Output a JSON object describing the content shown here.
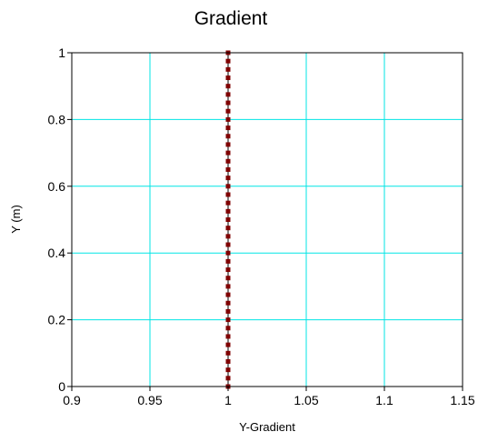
{
  "chart_data": {
    "type": "line",
    "title": "Gradient",
    "xlabel": "Y-Gradient",
    "ylabel": "Y (m)",
    "xlim": [
      0.9,
      1.15
    ],
    "ylim": [
      0,
      1
    ],
    "x_ticks": [
      "0.9",
      "0.95",
      "1",
      "1.05",
      "1.1",
      "1.15"
    ],
    "y_ticks": [
      "0",
      "0.2",
      "0.4",
      "0.6",
      "0.8",
      "1"
    ],
    "grid": true,
    "series": [
      {
        "x": [
          1,
          1,
          1,
          1,
          1,
          1,
          1,
          1,
          1,
          1,
          1,
          1,
          1,
          1,
          1,
          1,
          1,
          1,
          1,
          1,
          1,
          1,
          1,
          1,
          1,
          1,
          1,
          1,
          1,
          1,
          1,
          1,
          1,
          1,
          1,
          1,
          1,
          1,
          1,
          1,
          1
        ],
        "y": [
          0,
          0.025,
          0.05,
          0.075,
          0.1,
          0.125,
          0.15,
          0.175,
          0.2,
          0.225,
          0.25,
          0.275,
          0.3,
          0.325,
          0.35,
          0.375,
          0.4,
          0.425,
          0.45,
          0.475,
          0.5,
          0.525,
          0.55,
          0.575,
          0.6,
          0.625,
          0.65,
          0.675,
          0.7,
          0.725,
          0.75,
          0.775,
          0.8,
          0.825,
          0.85,
          0.875,
          0.9,
          0.925,
          0.95,
          0.975,
          1
        ],
        "line_color": "#000000",
        "marker_color": "#800000"
      }
    ],
    "grid_color": "#00e5e5"
  }
}
